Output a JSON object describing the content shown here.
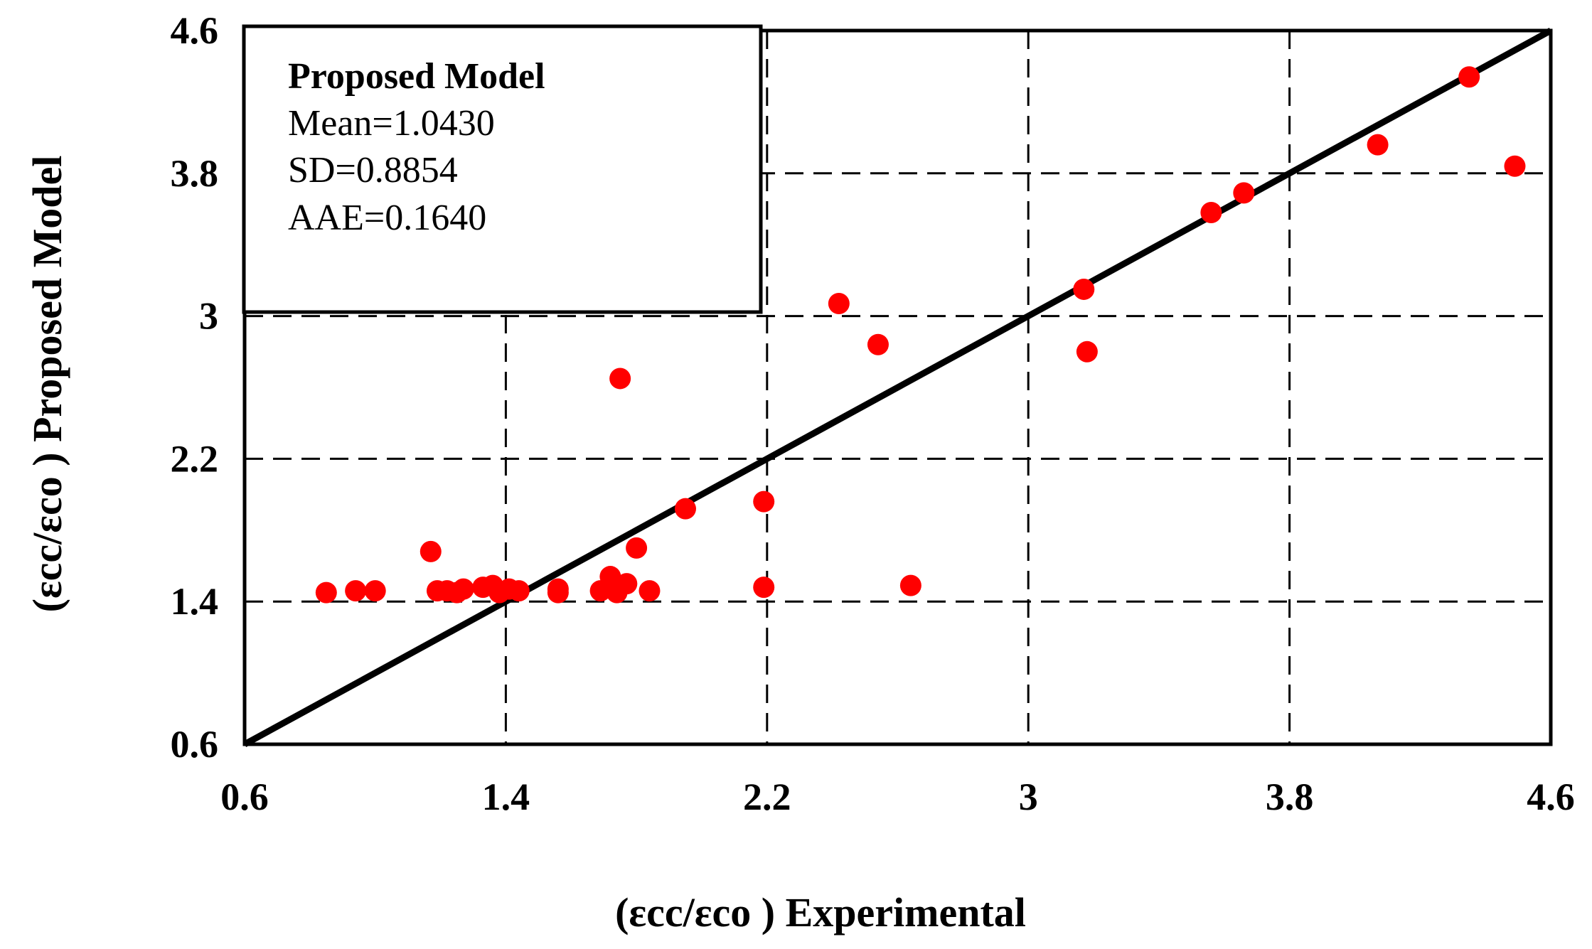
{
  "chart_data": {
    "type": "scatter",
    "title": "",
    "xlabel": "(εcc/εco ) Experimental",
    "ylabel": "(εcc/εco ) Proposed Model",
    "xlim": [
      0.6,
      4.6
    ],
    "ylim": [
      0.6,
      4.6
    ],
    "xticks": [
      "0.6",
      "1.4",
      "2.2",
      "3",
      "3.8",
      "4.6"
    ],
    "yticks": [
      "0.6",
      "1.4",
      "2.2",
      "3",
      "3.8",
      "4.6"
    ],
    "xtick_values": [
      0.6,
      1.4,
      2.2,
      3.0,
      3.8,
      4.6
    ],
    "ytick_values": [
      0.6,
      1.4,
      2.2,
      3.0,
      3.8,
      4.6
    ],
    "grid": "dashed",
    "reference_line": {
      "name": "y = x",
      "x": [
        0.6,
        4.6
      ],
      "y": [
        0.6,
        4.6
      ],
      "color": "#000000"
    },
    "legend": {
      "title": "Proposed Model",
      "lines": [
        "Mean=1.0430",
        "SD=0.8854",
        "AAE=0.1640"
      ],
      "placement": "top-left"
    },
    "series": [
      {
        "name": "Proposed Model",
        "color": "#ff0000",
        "points": [
          [
            0.85,
            1.45
          ],
          [
            0.94,
            1.46
          ],
          [
            1.0,
            1.46
          ],
          [
            1.17,
            1.68
          ],
          [
            1.19,
            1.46
          ],
          [
            1.22,
            1.46
          ],
          [
            1.25,
            1.45
          ],
          [
            1.27,
            1.47
          ],
          [
            1.33,
            1.48
          ],
          [
            1.36,
            1.49
          ],
          [
            1.38,
            1.45
          ],
          [
            1.41,
            1.47
          ],
          [
            1.44,
            1.46
          ],
          [
            1.56,
            1.47
          ],
          [
            1.56,
            1.45
          ],
          [
            1.69,
            1.46
          ],
          [
            1.72,
            1.54
          ],
          [
            1.74,
            1.45
          ],
          [
            1.75,
            2.65
          ],
          [
            1.77,
            1.5
          ],
          [
            1.8,
            1.7
          ],
          [
            1.84,
            1.46
          ],
          [
            1.95,
            1.92
          ],
          [
            2.19,
            1.96
          ],
          [
            2.19,
            1.48
          ],
          [
            2.42,
            3.07
          ],
          [
            2.54,
            2.84
          ],
          [
            2.64,
            1.49
          ],
          [
            3.17,
            3.15
          ],
          [
            3.18,
            2.8
          ],
          [
            3.56,
            3.58
          ],
          [
            3.66,
            3.69
          ],
          [
            4.07,
            3.96
          ],
          [
            4.35,
            4.34
          ],
          [
            4.49,
            3.84
          ]
        ]
      }
    ]
  }
}
